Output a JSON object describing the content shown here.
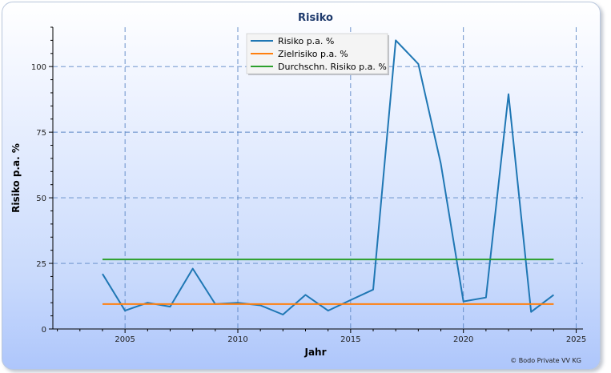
{
  "chart_data": {
    "type": "line",
    "title": "Risiko",
    "xlabel": "Jahr",
    "ylabel": "Risiko p.a. %",
    "xlim": [
      2001.8,
      2025.3
    ],
    "ylim": [
      0,
      115
    ],
    "x_ticks": [
      2005,
      2010,
      2015,
      2020,
      2025
    ],
    "y_ticks": [
      0,
      25,
      50,
      75,
      100
    ],
    "grid": true,
    "legend_position": "top-center",
    "series": [
      {
        "name": "Risiko p.a. %",
        "color": "#1f77b4",
        "x": [
          2004,
          2005,
          2006,
          2007,
          2008,
          2009,
          2010,
          2011,
          2012,
          2013,
          2014,
          2015,
          2016,
          2017,
          2018,
          2019,
          2020,
          2021,
          2022,
          2023,
          2024
        ],
        "y": [
          21,
          7,
          10,
          8.5,
          23,
          9.5,
          10,
          9,
          5.5,
          13,
          7,
          11,
          15,
          110,
          101,
          63,
          10.5,
          12,
          89.5,
          6.5,
          13
        ]
      },
      {
        "name": "Zielrisiko p.a. %",
        "color": "#ff7f0e",
        "x": [
          2004,
          2024
        ],
        "y": [
          9.5,
          9.5
        ]
      },
      {
        "name": "Durchschn. Risiko p.a. %",
        "color": "#2ca02c",
        "x": [
          2004,
          2024
        ],
        "y": [
          26.5,
          26.5
        ]
      }
    ],
    "copyright": "© Bodo Private VV KG"
  }
}
